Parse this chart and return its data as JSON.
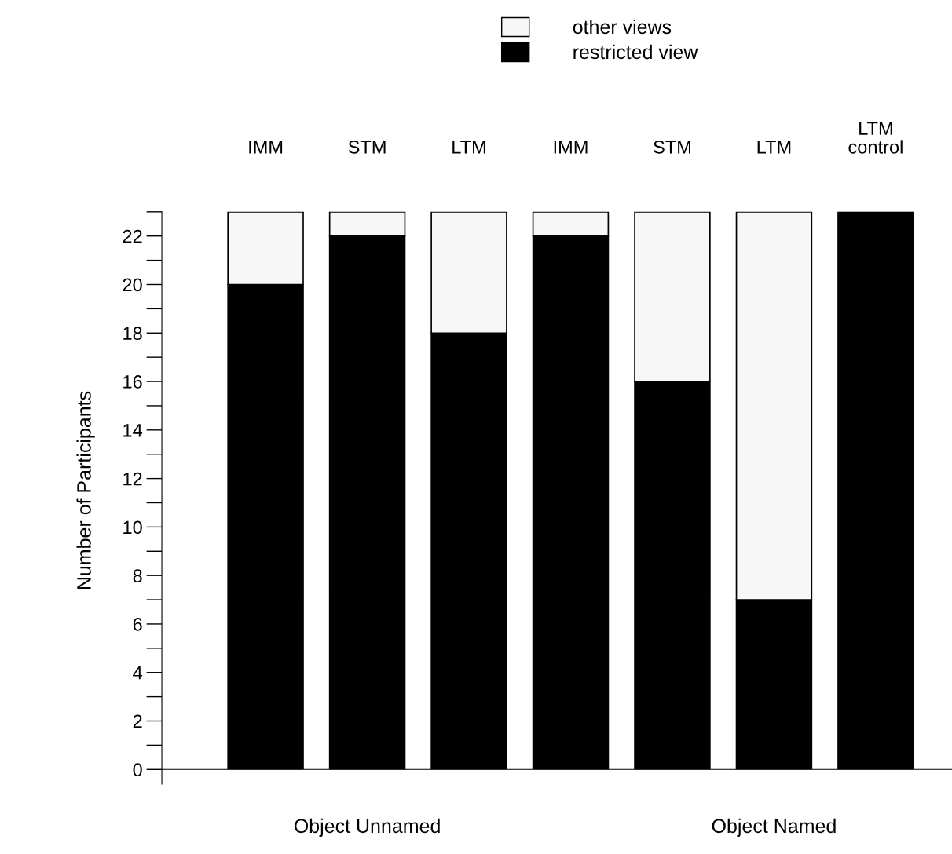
{
  "chart_data": {
    "type": "bar",
    "stacked": true,
    "categories": [
      "IMM",
      "STM",
      "LTM",
      "IMM",
      "STM",
      "LTM",
      "LTM\ncontrol"
    ],
    "series": [
      {
        "name": "restricted view",
        "color": "#000000",
        "values": [
          20,
          22,
          18,
          22,
          16,
          7,
          23
        ]
      },
      {
        "name": "other views",
        "color": "#f7f7f7",
        "values": [
          3,
          1,
          5,
          1,
          7,
          16,
          0
        ]
      }
    ],
    "ylabel": "Number of Participants",
    "ylim": [
      0,
      23
    ],
    "yticks": [
      0,
      2,
      4,
      6,
      8,
      10,
      12,
      14,
      16,
      18,
      20,
      22
    ],
    "annotations": [
      "Object Unnamed",
      "Object Named"
    ],
    "legend": "top",
    "grid": false
  }
}
